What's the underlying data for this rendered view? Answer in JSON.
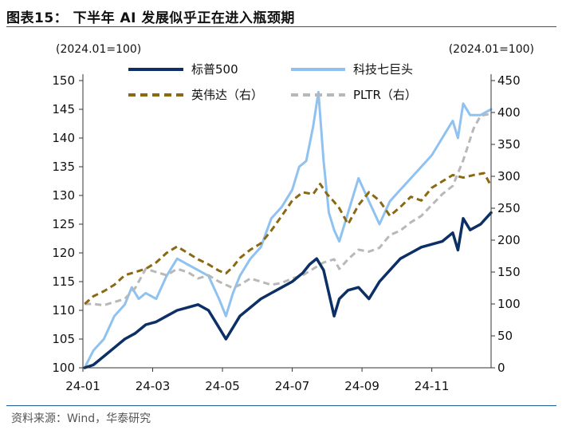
{
  "title": "图表15： 下半年 AI 发展似乎正在进入瓶颈期",
  "source": "资料来源：Wind，华泰研究",
  "chart_data": {
    "type": "line",
    "left_axis_note": "(2024.01=100)",
    "right_axis_note": "(2024.01=100)",
    "x_ticks": [
      "24-01",
      "24-03",
      "24-05",
      "24-07",
      "24-09",
      "24-11"
    ],
    "x_range_months": [
      0,
      11.7
    ],
    "y_left_ticks": [
      100,
      105,
      110,
      115,
      120,
      125,
      130,
      135,
      140,
      145,
      150
    ],
    "y_left_range": [
      100,
      150
    ],
    "y_right_ticks": [
      0,
      50,
      100,
      150,
      200,
      250,
      300,
      350,
      400,
      450
    ],
    "y_right_range": [
      0,
      450
    ],
    "legend": [
      "标普500",
      "科技七巨头",
      "英伟达（右）",
      "PLTR（右）"
    ],
    "colors": {
      "sp500": "#0c2f66",
      "mag7": "#8fc2f0",
      "nvda": "#8a6914",
      "pltr": "#b8b8b8"
    },
    "series": [
      {
        "name": "标普500",
        "axis": "left",
        "style": "solid",
        "x": [
          0.05,
          0.3,
          0.6,
          0.9,
          1.2,
          1.5,
          1.8,
          2.1,
          2.4,
          2.7,
          3.0,
          3.3,
          3.6,
          3.9,
          4.1,
          4.3,
          4.5,
          4.8,
          5.1,
          5.4,
          5.7,
          6.0,
          6.3,
          6.5,
          6.7,
          6.9,
          7.05,
          7.2,
          7.35,
          7.6,
          7.9,
          8.2,
          8.5,
          8.8,
          9.1,
          9.4,
          9.7,
          10.0,
          10.3,
          10.6,
          10.75,
          10.9,
          11.1,
          11.4,
          11.7
        ],
        "y": [
          100,
          100.5,
          102,
          103.5,
          105,
          106,
          107.5,
          108,
          109,
          110,
          110.5,
          111,
          110,
          107,
          105,
          107,
          109,
          110.5,
          112,
          113,
          114,
          115,
          116.5,
          118,
          119,
          117,
          113,
          109,
          112,
          113.5,
          114,
          112,
          115,
          117,
          119,
          120,
          121,
          121.5,
          122,
          123.5,
          120.5,
          126,
          124,
          125,
          127
        ]
      },
      {
        "name": "科技七巨头",
        "axis": "left",
        "style": "solid",
        "x": [
          0.05,
          0.3,
          0.6,
          0.9,
          1.2,
          1.4,
          1.6,
          1.8,
          2.1,
          2.4,
          2.7,
          3.0,
          3.3,
          3.6,
          3.9,
          4.1,
          4.3,
          4.5,
          4.8,
          5.1,
          5.4,
          5.7,
          6.0,
          6.2,
          6.4,
          6.6,
          6.75,
          6.9,
          7.05,
          7.2,
          7.35,
          7.6,
          7.9,
          8.2,
          8.5,
          8.8,
          9.1,
          9.4,
          9.7,
          10.0,
          10.3,
          10.6,
          10.75,
          10.9,
          11.1,
          11.4,
          11.7
        ],
        "y": [
          100,
          103,
          105,
          109,
          111,
          114,
          112,
          113,
          112,
          116,
          119,
          118,
          117,
          116,
          112,
          109,
          113,
          116,
          119,
          121,
          126,
          128,
          131,
          135,
          136,
          142,
          148,
          136,
          127,
          124,
          122,
          127,
          133,
          129,
          125,
          129,
          131,
          133,
          135,
          137,
          140,
          143,
          140,
          146,
          144,
          144,
          145
        ]
      },
      {
        "name": "英伟达（右）",
        "axis": "right",
        "style": "dashed",
        "x": [
          0.05,
          0.3,
          0.6,
          0.9,
          1.2,
          1.5,
          1.8,
          2.1,
          2.4,
          2.7,
          3.0,
          3.3,
          3.6,
          3.9,
          4.1,
          4.3,
          4.5,
          4.8,
          5.1,
          5.4,
          5.7,
          6.0,
          6.3,
          6.6,
          6.8,
          7.0,
          7.2,
          7.35,
          7.6,
          7.9,
          8.2,
          8.5,
          8.8,
          9.1,
          9.4,
          9.7,
          10.0,
          10.3,
          10.6,
          10.9,
          11.2,
          11.5,
          11.7
        ],
        "y": [
          100,
          112,
          120,
          130,
          145,
          150,
          155,
          165,
          180,
          190,
          180,
          170,
          162,
          152,
          148,
          158,
          172,
          185,
          195,
          215,
          238,
          262,
          275,
          272,
          288,
          272,
          260,
          250,
          225,
          255,
          275,
          262,
          238,
          252,
          268,
          262,
          282,
          292,
          302,
          298,
          302,
          305,
          285
        ]
      },
      {
        "name": "PLTR（右）",
        "axis": "right",
        "style": "dashed",
        "x": [
          0.05,
          0.3,
          0.6,
          0.9,
          1.2,
          1.5,
          1.8,
          2.1,
          2.4,
          2.7,
          3.0,
          3.3,
          3.6,
          3.9,
          4.1,
          4.3,
          4.5,
          4.8,
          5.1,
          5.4,
          5.7,
          6.0,
          6.3,
          6.6,
          6.9,
          7.2,
          7.35,
          7.6,
          7.9,
          8.2,
          8.5,
          8.8,
          9.1,
          9.4,
          9.7,
          10.0,
          10.3,
          10.6,
          10.9,
          11.2,
          11.4,
          11.7
        ],
        "y": [
          100,
          100,
          98,
          103,
          108,
          125,
          155,
          150,
          145,
          155,
          150,
          140,
          145,
          135,
          130,
          125,
          130,
          140,
          135,
          130,
          133,
          140,
          145,
          155,
          165,
          170,
          155,
          170,
          185,
          182,
          188,
          208,
          215,
          228,
          238,
          255,
          272,
          285,
          325,
          375,
          395,
          398
        ]
      }
    ]
  }
}
